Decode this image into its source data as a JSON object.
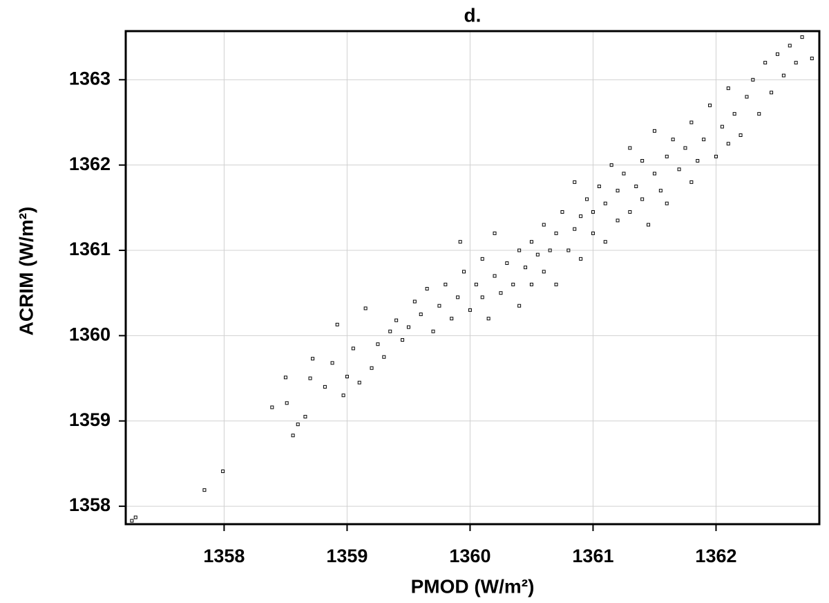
{
  "chart_data": {
    "type": "scatter",
    "title": "d.",
    "x_label": "PMOD (W/m²)",
    "y_label": "ACRIM (W/m²)",
    "color": "#000000",
    "grid": true,
    "xlim": [
      1357.2,
      1362.84
    ],
    "ylim": [
      1357.79,
      1363.57
    ],
    "xticks": [
      1358,
      1359,
      1360,
      1361,
      1362
    ],
    "yticks": [
      1358,
      1359,
      1360,
      1361,
      1362,
      1363
    ],
    "x": [
      1357.25,
      1357.28,
      1357.84,
      1357.99,
      1358.39,
      1358.5,
      1358.51,
      1358.56,
      1358.6,
      1358.66,
      1358.7,
      1358.72,
      1358.82,
      1358.88,
      1358.92,
      1358.97,
      1359.0,
      1359.05,
      1359.1,
      1359.15,
      1359.2,
      1359.25,
      1359.3,
      1359.35,
      1359.4,
      1359.45,
      1359.5,
      1359.55,
      1359.6,
      1359.65,
      1359.7,
      1359.75,
      1359.8,
      1359.85,
      1359.9,
      1359.92,
      1359.95,
      1360.0,
      1360.05,
      1360.1,
      1360.1,
      1360.15,
      1360.2,
      1360.2,
      1360.25,
      1360.3,
      1360.35,
      1360.4,
      1360.4,
      1360.45,
      1360.5,
      1360.5,
      1360.55,
      1360.6,
      1360.6,
      1360.65,
      1360.7,
      1360.7,
      1360.75,
      1360.8,
      1360.85,
      1360.85,
      1360.9,
      1360.9,
      1360.95,
      1361.0,
      1361.0,
      1361.05,
      1361.1,
      1361.1,
      1361.15,
      1361.2,
      1361.2,
      1361.25,
      1361.3,
      1361.3,
      1361.35,
      1361.4,
      1361.4,
      1361.45,
      1361.5,
      1361.5,
      1361.55,
      1361.6,
      1361.6,
      1361.65,
      1361.7,
      1361.75,
      1361.8,
      1361.8,
      1361.85,
      1361.9,
      1361.95,
      1362.0,
      1362.05,
      1362.1,
      1362.1,
      1362.15,
      1362.2,
      1362.25,
      1362.3,
      1362.35,
      1362.4,
      1362.45,
      1362.5,
      1362.55,
      1362.6,
      1362.65,
      1362.7,
      1362.78
    ],
    "values": [
      1357.83,
      1357.87,
      1358.19,
      1358.41,
      1359.16,
      1359.51,
      1359.21,
      1358.83,
      1358.96,
      1359.05,
      1359.5,
      1359.73,
      1359.4,
      1359.68,
      1360.13,
      1359.3,
      1359.52,
      1359.85,
      1359.45,
      1360.32,
      1359.62,
      1359.9,
      1359.75,
      1360.05,
      1360.18,
      1359.95,
      1360.1,
      1360.4,
      1360.25,
      1360.55,
      1360.05,
      1360.35,
      1360.6,
      1360.2,
      1360.45,
      1361.1,
      1360.75,
      1360.3,
      1360.6,
      1360.9,
      1360.45,
      1360.2,
      1360.7,
      1361.2,
      1360.5,
      1360.85,
      1360.6,
      1361.0,
      1360.35,
      1360.8,
      1361.1,
      1360.6,
      1360.95,
      1361.3,
      1360.75,
      1361.0,
      1360.6,
      1361.2,
      1361.45,
      1361.0,
      1361.25,
      1361.8,
      1360.9,
      1361.4,
      1361.6,
      1361.2,
      1361.45,
      1361.75,
      1361.1,
      1361.55,
      1362.0,
      1361.35,
      1361.7,
      1361.9,
      1361.45,
      1362.2,
      1361.75,
      1361.6,
      1362.05,
      1361.3,
      1361.9,
      1362.4,
      1361.7,
      1362.1,
      1361.55,
      1362.3,
      1361.95,
      1362.2,
      1361.8,
      1362.5,
      1362.05,
      1362.3,
      1362.7,
      1362.1,
      1362.45,
      1362.9,
      1362.25,
      1362.6,
      1362.35,
      1362.8,
      1363.0,
      1362.6,
      1363.2,
      1362.85,
      1363.3,
      1363.05,
      1363.4,
      1363.2,
      1363.5,
      1363.25
    ]
  }
}
